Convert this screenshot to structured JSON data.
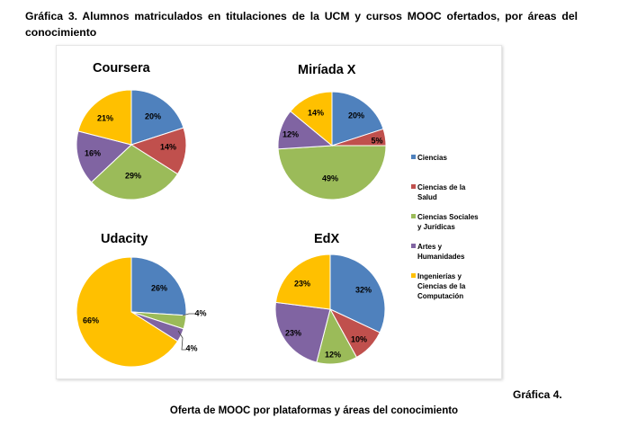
{
  "caption": "Gráfica 3. Alumnos matriculados en titulaciones de la UCM y cursos MOOC ofertados, por áreas del conocimiento",
  "figure_number": "Gráfica 4.",
  "figure_caption": "Oferta de MOOC por plataformas y áreas del conocimiento",
  "colors": {
    "Ciencias": "#4f81bd",
    "Ciencias de la Salud": "#c0504d",
    "Ciencias Sociales y Jurídicas": "#9bbb59",
    "Artes y Humanidades": "#8064a2",
    "Ingenierías y Ciencias de la Computación": "#ffc000"
  },
  "chart_data": [
    {
      "type": "pie",
      "title": "Coursera",
      "categories": [
        "Ciencias",
        "Ciencias de la Salud",
        "Ciencias Sociales y Jurídicas",
        "Artes y Humanidades",
        "Ingenierías y Ciencias de la Computación"
      ],
      "values": [
        20,
        14,
        29,
        16,
        21
      ],
      "labels": [
        "20%",
        "14%",
        "29%",
        "16%",
        "21%"
      ]
    },
    {
      "type": "pie",
      "title": "Miríada X",
      "categories": [
        "Ciencias",
        "Ciencias de la Salud",
        "Ciencias Sociales y Jurídicas",
        "Artes y Humanidades",
        "Ingenierías y Ciencias de la Computación"
      ],
      "values": [
        20,
        5,
        49,
        12,
        14
      ],
      "labels": [
        "20%",
        "5%",
        "49%",
        "12%",
        "14%"
      ]
    },
    {
      "type": "pie",
      "title": "Udacity",
      "categories": [
        "Ciencias",
        "Ciencias Sociales y Jurídicas",
        "Artes y Humanidades",
        "Ingenierías y Ciencias de la Computación"
      ],
      "values": [
        26,
        4,
        4,
        66
      ],
      "labels": [
        "26%",
        "4%",
        "4%",
        "66%"
      ]
    },
    {
      "type": "pie",
      "title": "EdX",
      "categories": [
        "Ciencias",
        "Ciencias de la Salud",
        "Ciencias Sociales y Jurídicas",
        "Artes y Humanidades",
        "Ingenierías y Ciencias de la Computación"
      ],
      "values": [
        32,
        10,
        12,
        23,
        23
      ],
      "labels": [
        "32%",
        "10%",
        "12%",
        "23%",
        "23%"
      ]
    }
  ],
  "legend": {
    "placement": "right",
    "entries": [
      {
        "label_lines": [
          "Ciencias"
        ],
        "category": "Ciencias"
      },
      {
        "label_lines": [
          "Ciencias de la",
          "Salud"
        ],
        "category": "Ciencias de la Salud"
      },
      {
        "label_lines": [
          "Ciencias Sociales",
          "y Jurídicas"
        ],
        "category": "Ciencias Sociales y Jurídicas"
      },
      {
        "label_lines": [
          "Artes y",
          "Humanidades"
        ],
        "category": "Artes y Humanidades"
      },
      {
        "label_lines": [
          "Ingenierías y",
          "Ciencias de la",
          "Computación"
        ],
        "category": "Ingenierías y Ciencias de la Computación"
      }
    ]
  }
}
